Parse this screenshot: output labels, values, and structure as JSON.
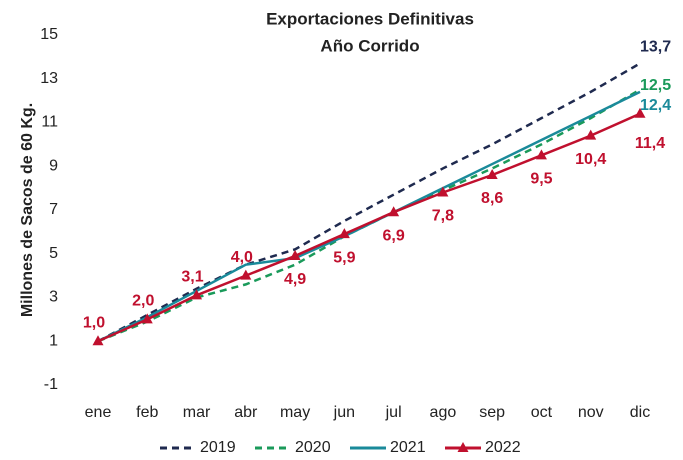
{
  "chart_data": {
    "type": "line",
    "title": [
      "Exportaciones Definitivas",
      "Año Corrido"
    ],
    "y_label": "Millones de Sacos de 60 Kg.",
    "categories": [
      "ene",
      "feb",
      "mar",
      "abr",
      "may",
      "jun",
      "jul",
      "ago",
      "sep",
      "oct",
      "nov",
      "dic"
    ],
    "ylim": [
      -1,
      15
    ],
    "yticks": [
      -1,
      1,
      3,
      5,
      7,
      9,
      11,
      13,
      15
    ],
    "grid": false,
    "legend": "bottom",
    "series": [
      {
        "name": "2019",
        "color": "#1f2a4f",
        "dash": true,
        "values": [
          1.0,
          2.2,
          3.4,
          4.5,
          5.2,
          6.5,
          7.7,
          8.9,
          10.0,
          11.2,
          12.4,
          13.7
        ],
        "value_labels": [
          null,
          null,
          null,
          null,
          null,
          null,
          null,
          null,
          null,
          null,
          null,
          "13,7"
        ]
      },
      {
        "name": "2020",
        "color": "#1a9a5a",
        "dash": true,
        "values": [
          1.0,
          1.9,
          3.0,
          3.6,
          4.5,
          5.8,
          6.9,
          7.9,
          8.9,
          10.0,
          11.2,
          12.5
        ],
        "value_labels": [
          null,
          null,
          null,
          null,
          null,
          null,
          null,
          null,
          null,
          null,
          null,
          "12,5"
        ]
      },
      {
        "name": "2021",
        "color": "#1a8a9a",
        "dash": false,
        "values": [
          1.0,
          2.1,
          3.3,
          4.5,
          4.8,
          5.8,
          6.9,
          8.0,
          9.1,
          10.2,
          11.3,
          12.4
        ],
        "value_labels": [
          null,
          null,
          null,
          null,
          null,
          null,
          null,
          null,
          null,
          null,
          null,
          "12,4"
        ]
      },
      {
        "name": "2022",
        "color": "#c0102e",
        "dash": false,
        "markers": true,
        "values": [
          1.0,
          2.0,
          3.1,
          4.0,
          4.9,
          5.9,
          6.9,
          7.8,
          8.6,
          9.5,
          10.4,
          11.4
        ],
        "value_labels": [
          "1,0",
          "2,0",
          "3,1",
          "4,0",
          "4,9",
          "5,9",
          "6,9",
          "7,8",
          "8,6",
          "9,5",
          "10,4",
          "11,4"
        ]
      }
    ]
  }
}
